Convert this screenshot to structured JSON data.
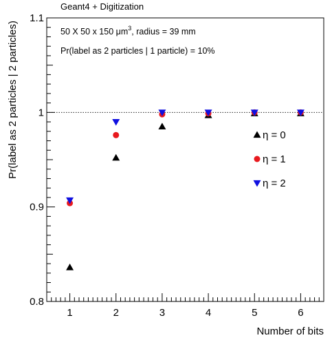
{
  "chart_data": {
    "type": "scatter",
    "top_label": "Geant4 + Digitization",
    "annotations": [
      {
        "pre": "50 X 50 x 150 ",
        "unit": "μm",
        "sup": "3",
        "post": ", radius = 39 mm"
      },
      {
        "text": "Pr(label as 2 particles | 1 particle) = 10%"
      }
    ],
    "xlabel": "Number of bits",
    "ylabel": "Pr(label as 2 particles | 2 particles)",
    "xlim": [
      0.5,
      6.5
    ],
    "ylim": [
      0.8,
      1.1
    ],
    "x_ticks": [
      1,
      2,
      3,
      4,
      5,
      6
    ],
    "x_tick_labels": [
      "1",
      "2",
      "3",
      "4",
      "5",
      "6"
    ],
    "y_ticks": [
      0.8,
      0.9,
      1.0,
      1.1
    ],
    "y_tick_labels": [
      "0.8",
      "0.9",
      "1",
      "1.1"
    ],
    "reference_line": 1.0,
    "legend_position": "right-middle",
    "series": [
      {
        "name": "η = 0",
        "marker": "triangle-up",
        "color": "#000000",
        "x": [
          1,
          2,
          3,
          4,
          5,
          6
        ],
        "y": [
          0.836,
          0.952,
          0.985,
          0.997,
          0.999,
          0.999
        ]
      },
      {
        "name": "η = 1",
        "marker": "circle",
        "color": "#e8191e",
        "x": [
          1,
          2,
          3,
          4,
          5,
          6
        ],
        "y": [
          0.904,
          0.976,
          0.998,
          0.999,
          1.0,
          1.0
        ]
      },
      {
        "name": "η = 2",
        "marker": "triangle-down",
        "color": "#1010e0",
        "x": [
          1,
          2,
          3,
          4,
          5,
          6
        ],
        "y": [
          0.907,
          0.99,
          1.0,
          1.0,
          1.0,
          1.0
        ]
      }
    ]
  }
}
